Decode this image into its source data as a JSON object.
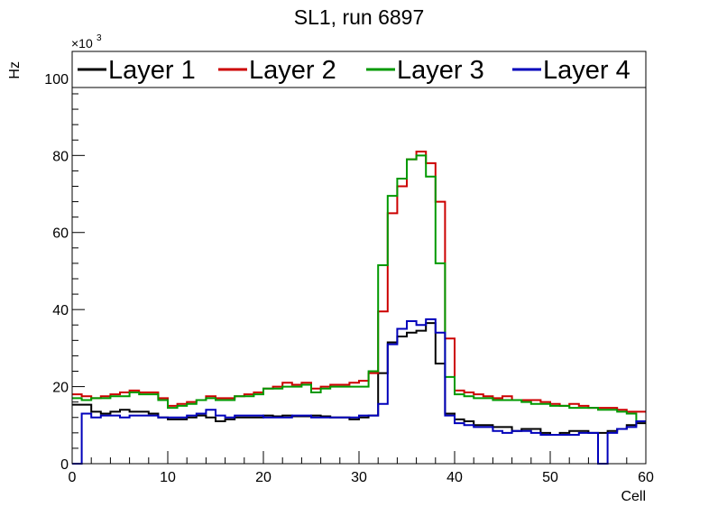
{
  "chart_data": {
    "type": "line",
    "title": "SL1, run 6897",
    "xlabel": "Cell",
    "ylabel": "Hz",
    "y_multiplier_label": "×10",
    "y_multiplier_exponent": "3",
    "xlim": [
      0,
      60
    ],
    "ylim": [
      0,
      107
    ],
    "x_ticks": [
      0,
      10,
      20,
      30,
      40,
      50,
      60
    ],
    "y_ticks": [
      0,
      20,
      40,
      60,
      80,
      100
    ],
    "grid": false,
    "legend_position": "top",
    "bin_width": 1,
    "series": [
      {
        "name": "Layer 1",
        "color": "#000000",
        "values": [
          15.3,
          15.3,
          13.5,
          13.0,
          13.5,
          14.0,
          13.5,
          13.5,
          13.0,
          12.0,
          11.5,
          11.5,
          12.0,
          12.5,
          12.0,
          11.0,
          11.5,
          12.0,
          12.0,
          12.0,
          12.5,
          12.3,
          12.5,
          12.3,
          12.3,
          12.5,
          12.3,
          12.0,
          12.0,
          11.5,
          12.0,
          12.5,
          23.5,
          31.5,
          33.0,
          34.0,
          34.5,
          36.5,
          26.0,
          13.0,
          11.5,
          11.0,
          10.0,
          10.0,
          9.5,
          9.5,
          8.5,
          9.0,
          9.0,
          8.0,
          7.5,
          8.0,
          8.5,
          8.5,
          8.0,
          8.0,
          8.5,
          9.0,
          10.0,
          10.5
        ]
      },
      {
        "name": "Layer 2",
        "color": "#cc0000",
        "values": [
          18.0,
          17.5,
          17.0,
          17.5,
          18.0,
          18.5,
          19.0,
          18.5,
          18.5,
          17.0,
          15.0,
          15.5,
          16.0,
          16.5,
          17.5,
          17.0,
          17.0,
          17.5,
          18.0,
          18.5,
          19.5,
          20.0,
          21.0,
          20.5,
          21.0,
          19.5,
          20.0,
          20.5,
          20.5,
          21.0,
          21.5,
          23.5,
          39.5,
          65.0,
          72.0,
          79.0,
          81.0,
          78.0,
          68.0,
          32.5,
          19.0,
          18.5,
          18.0,
          17.5,
          17.0,
          17.5,
          16.5,
          16.5,
          16.5,
          16.0,
          15.5,
          15.0,
          15.5,
          15.0,
          14.5,
          14.5,
          14.5,
          14.0,
          13.5,
          13.5
        ]
      },
      {
        "name": "Layer 3",
        "color": "#009900",
        "values": [
          17.0,
          16.5,
          17.0,
          17.0,
          17.5,
          17.5,
          18.5,
          18.0,
          18.0,
          16.5,
          14.5,
          15.0,
          15.5,
          16.5,
          17.0,
          16.5,
          16.5,
          17.5,
          17.5,
          18.0,
          19.5,
          19.5,
          20.0,
          20.0,
          20.5,
          18.5,
          19.5,
          20.0,
          20.0,
          20.0,
          20.0,
          24.0,
          51.5,
          69.5,
          74.0,
          79.0,
          80.0,
          74.5,
          52.0,
          22.5,
          18.0,
          17.5,
          17.0,
          17.0,
          16.5,
          16.5,
          16.5,
          16.0,
          15.5,
          15.5,
          15.0,
          15.0,
          14.5,
          14.5,
          14.5,
          14.0,
          14.0,
          13.5,
          13.0,
          11.0
        ]
      },
      {
        "name": "Layer 4",
        "color": "#0000bb",
        "values": [
          0.0,
          13.0,
          12.0,
          12.5,
          12.5,
          12.0,
          12.5,
          12.5,
          12.5,
          12.0,
          12.0,
          12.0,
          12.5,
          13.0,
          14.0,
          12.5,
          12.0,
          12.5,
          12.5,
          12.5,
          12.0,
          12.0,
          12.0,
          12.5,
          12.5,
          12.0,
          12.0,
          12.0,
          12.0,
          12.0,
          12.5,
          12.5,
          15.5,
          31.0,
          35.0,
          37.0,
          36.0,
          37.5,
          34.0,
          12.5,
          10.5,
          10.0,
          9.5,
          9.5,
          8.5,
          8.0,
          8.5,
          8.5,
          8.0,
          7.5,
          7.5,
          7.5,
          7.5,
          8.0,
          8.0,
          0.0,
          8.0,
          9.0,
          9.5,
          11.0
        ]
      }
    ]
  }
}
